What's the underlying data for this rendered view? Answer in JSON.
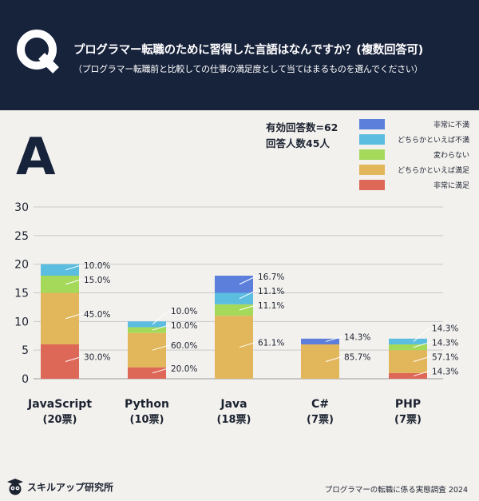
{
  "header": {
    "q_letter": "Q",
    "title": "プログラマー転職のために習得した言語はなんですか？(複数回答可)",
    "subtitle": "（プログラマー転職前と比較しての仕事の満足度として当てはまるものを選んでください）"
  },
  "answer_letter": "A",
  "stats": {
    "valid_answers": "有効回答数=62",
    "respondents": "回答人数45人"
  },
  "colors": {
    "very_dissatisfied": "#5b7fdb",
    "somewhat_dissatisfied": "#5bbde0",
    "unchanged": "#a5d95a",
    "somewhat_satisfied": "#e2b65b",
    "very_satisfied": "#de6857",
    "header_bg": "#17223b"
  },
  "legend": [
    {
      "label": "非常に不満",
      "color": "#5b7fdb"
    },
    {
      "label": "どちらかといえば不満",
      "color": "#5bbde0"
    },
    {
      "label": "変わらない",
      "color": "#a5d95a"
    },
    {
      "label": "どちらかといえば満足",
      "color": "#e2b65b"
    },
    {
      "label": "非常に満足",
      "color": "#de6857"
    }
  ],
  "chart_data": {
    "type": "bar",
    "stacked": true,
    "categories": [
      "JavaScript",
      "Python",
      "Java",
      "C#",
      "PHP"
    ],
    "category_sublabels": [
      "(20票)",
      "(10票)",
      "(18票)",
      "(7票)",
      "(7票)"
    ],
    "ylim": [
      0,
      30
    ],
    "yticks": [
      0,
      5,
      10,
      15,
      20,
      25,
      30
    ],
    "grid": true,
    "legend_position": "top-right",
    "series": [
      {
        "name": "非常に満足",
        "color": "#de6857",
        "values": [
          6,
          2,
          0,
          0,
          1
        ],
        "labels": [
          "30.0%",
          "20.0%",
          "",
          "",
          "14.3%"
        ]
      },
      {
        "name": "どちらかといえば満足",
        "color": "#e2b65b",
        "values": [
          9,
          6,
          11,
          6,
          4
        ],
        "labels": [
          "45.0%",
          "60.0%",
          "61.1%",
          "85.7%",
          "57.1%"
        ]
      },
      {
        "name": "変わらない",
        "color": "#a5d95a",
        "values": [
          3,
          1,
          2,
          0,
          1
        ],
        "labels": [
          "15.0%",
          "10.0%",
          "11.1%",
          "",
          "14.3%"
        ]
      },
      {
        "name": "どちらかといえば不満",
        "color": "#5bbde0",
        "values": [
          2,
          1,
          2,
          0,
          1
        ],
        "labels": [
          "10.0%",
          "10.0%",
          "11.1%",
          "",
          "14.3%"
        ]
      },
      {
        "name": "非常に不満",
        "color": "#5b7fdb",
        "values": [
          0,
          0,
          3,
          1,
          0
        ],
        "labels": [
          "",
          "",
          "16.7%",
          "14.3%",
          ""
        ]
      }
    ]
  },
  "footer": {
    "brand": "スキルアップ研究所",
    "source": "プログラマーの転職に係る実態調査 2024"
  }
}
